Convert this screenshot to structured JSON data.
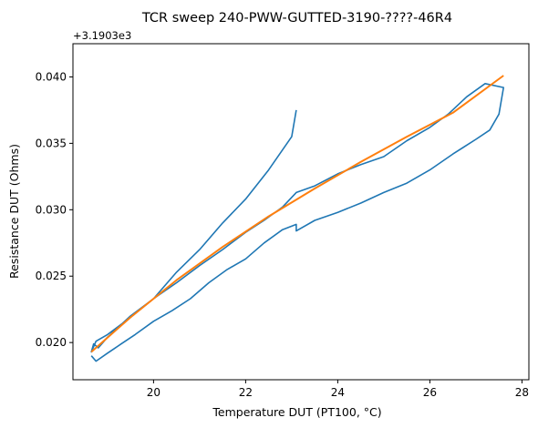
{
  "chart_data": {
    "type": "line",
    "title": "TCR sweep 240-PWW-GUTTED-3190-????-46R4",
    "xlabel": "Temperature DUT (PT100, °C)",
    "ylabel": "Resistance DUT (Ohms)",
    "y_offset_label": "+3.1903e3",
    "xlim": [
      18.25,
      28.15
    ],
    "ylim": [
      0.0172,
      0.0425
    ],
    "x_ticks": [
      20,
      22,
      24,
      26,
      28
    ],
    "x_tick_labels": [
      "20",
      "22",
      "24",
      "26",
      "28"
    ],
    "y_ticks": [
      0.02,
      0.025,
      0.03,
      0.035,
      0.04
    ],
    "y_tick_labels": [
      "0.020",
      "0.025",
      "0.030",
      "0.035",
      "0.040"
    ],
    "grid": false,
    "colors": {
      "measured": "#1f77b4",
      "fit": "#ff7f0e"
    },
    "series": [
      {
        "style": "measured",
        "x": [
          18.65,
          18.75,
          19.0,
          19.3,
          19.6,
          20.0,
          20.4,
          20.8,
          21.2,
          21.6,
          22.0,
          22.4,
          22.8,
          23.1,
          23.1,
          23.5,
          24.0,
          24.5,
          25.0,
          25.5,
          26.0,
          26.5,
          27.0,
          27.3,
          27.5,
          27.6,
          27.2,
          26.8,
          26.4,
          26.0,
          25.5,
          25.0,
          24.5,
          24.0,
          23.5,
          23.1,
          22.8,
          22.4,
          22.0,
          21.5,
          21.0,
          20.5,
          20.0,
          19.5,
          19.0,
          18.8,
          18.7,
          18.65,
          18.75,
          19.0,
          19.5,
          20.0,
          20.5,
          21.0,
          21.5,
          22.0,
          22.5,
          23.0,
          23.1
        ],
        "y": [
          0.019,
          0.0186,
          0.0192,
          0.0199,
          0.0206,
          0.0216,
          0.0224,
          0.0233,
          0.0245,
          0.0255,
          0.0263,
          0.0275,
          0.0285,
          0.0289,
          0.0284,
          0.0292,
          0.0298,
          0.0305,
          0.0313,
          0.032,
          0.033,
          0.0342,
          0.0353,
          0.036,
          0.0372,
          0.0392,
          0.0395,
          0.0385,
          0.0372,
          0.0362,
          0.0352,
          0.034,
          0.0334,
          0.0327,
          0.0318,
          0.0313,
          0.0302,
          0.0292,
          0.0283,
          0.027,
          0.0258,
          0.0245,
          0.0233,
          0.022,
          0.0204,
          0.0196,
          0.0199,
          0.0193,
          0.0201,
          0.0206,
          0.0219,
          0.0233,
          0.0253,
          0.027,
          0.029,
          0.0308,
          0.033,
          0.0355,
          0.0375
        ]
      },
      {
        "style": "fit",
        "x": [
          18.65,
          19.5,
          20.5,
          21.5,
          22.5,
          23.5,
          24.5,
          25.5,
          26.5,
          27.6
        ],
        "y": [
          0.0193,
          0.0219,
          0.0247,
          0.0272,
          0.0295,
          0.0316,
          0.0336,
          0.0355,
          0.0373,
          0.0401
        ]
      }
    ]
  }
}
